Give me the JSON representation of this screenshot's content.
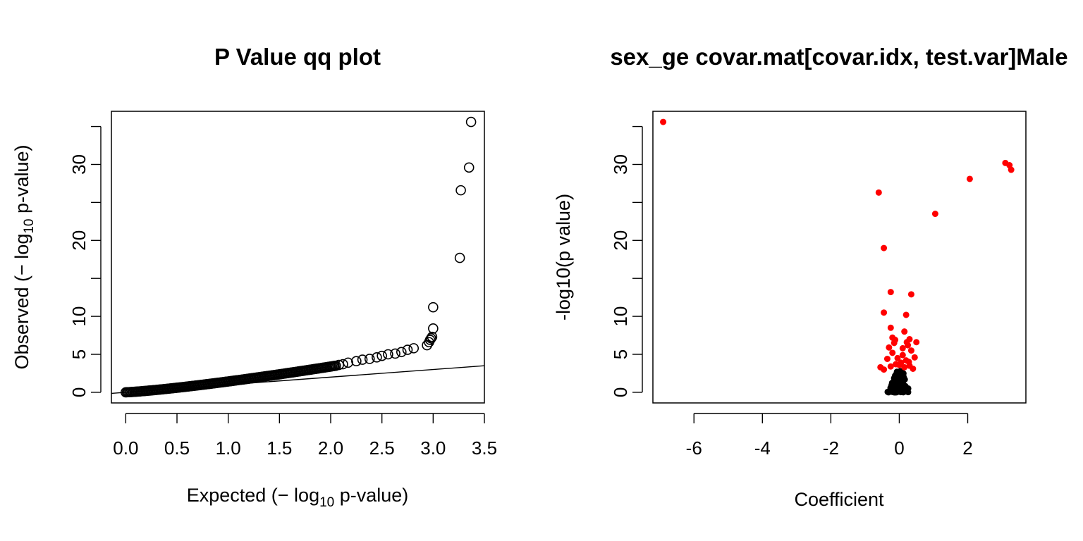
{
  "chart_data": [
    {
      "type": "scatter",
      "title": "P Value qq plot",
      "xlabel": {
        "pre": "Expected (− log",
        "sub": "10",
        "post": " p-value)"
      },
      "ylabel": {
        "pre": "Observed (− log",
        "sub": "10",
        "post": " p-value)"
      },
      "xlim": [
        -0.14,
        3.5
      ],
      "ylim": [
        -1.4,
        37
      ],
      "xticks": [
        0.0,
        0.5,
        1.0,
        1.5,
        2.0,
        2.5,
        3.0,
        3.5
      ],
      "xtick_labels": [
        "0.0",
        "0.5",
        "1.0",
        "1.5",
        "2.0",
        "2.5",
        "3.0",
        "3.5"
      ],
      "yticks": [
        0,
        5,
        10,
        15,
        20,
        25,
        30,
        35
      ],
      "ytick_labels": [
        "0",
        "5",
        "10",
        "",
        "20",
        "",
        "30",
        ""
      ],
      "reference_line": {
        "slope": 1.0,
        "intercept": 0.0
      },
      "marker": "open-circle",
      "bulk": {
        "x_start": 0.0,
        "x_end": 2.05,
        "y_start": 0.0,
        "y_end": 3.5
      },
      "points": [
        [
          2.08,
          3.6
        ],
        [
          2.12,
          3.7
        ],
        [
          2.17,
          3.9
        ],
        [
          2.25,
          4.1
        ],
        [
          2.31,
          4.3
        ],
        [
          2.38,
          4.4
        ],
        [
          2.45,
          4.6
        ],
        [
          2.5,
          4.8
        ],
        [
          2.56,
          5.0
        ],
        [
          2.63,
          5.1
        ],
        [
          2.69,
          5.3
        ],
        [
          2.75,
          5.6
        ],
        [
          2.81,
          5.8
        ],
        [
          2.94,
          6.2
        ],
        [
          2.96,
          6.6
        ],
        [
          2.97,
          6.9
        ],
        [
          2.98,
          7.1
        ],
        [
          2.99,
          7.3
        ],
        [
          3.0,
          8.4
        ],
        [
          3.0,
          11.2
        ],
        [
          3.26,
          17.7
        ],
        [
          3.27,
          26.6
        ],
        [
          3.35,
          29.6
        ],
        [
          3.37,
          35.6
        ]
      ]
    },
    {
      "type": "scatter",
      "title": "sex_ge covar.mat[covar.idx, test.var]Male",
      "xlabel": "Coefficient",
      "ylabel": "-log10(p value)",
      "xlim": [
        -7.2,
        3.7
      ],
      "ylim": [
        -1.4,
        37
      ],
      "xticks": [
        -6,
        -4,
        -2,
        0,
        2
      ],
      "xtick_labels": [
        "-6",
        "-4",
        "-2",
        "0",
        "2"
      ],
      "yticks": [
        0,
        5,
        10,
        15,
        20,
        25,
        30,
        35
      ],
      "ytick_labels": [
        "0",
        "5",
        "10",
        "",
        "20",
        "",
        "30",
        ""
      ],
      "colors": {
        "significant": "#ff0000",
        "nonsignificant": "#000000"
      },
      "significant_points": [
        [
          -6.9,
          35.6
        ],
        [
          3.1,
          30.2
        ],
        [
          3.22,
          29.9
        ],
        [
          3.27,
          29.3
        ],
        [
          2.06,
          28.1
        ],
        [
          -0.6,
          26.3
        ],
        [
          1.05,
          23.5
        ],
        [
          -0.45,
          19.0
        ],
        [
          -0.25,
          13.2
        ],
        [
          0.35,
          12.9
        ],
        [
          -0.45,
          10.5
        ],
        [
          0.2,
          10.2
        ],
        [
          -0.25,
          8.5
        ],
        [
          0.15,
          8.0
        ],
        [
          -0.2,
          7.2
        ],
        [
          0.3,
          7.0
        ],
        [
          0.5,
          6.6
        ],
        [
          -0.15,
          6.5
        ],
        [
          0.25,
          6.2
        ],
        [
          -0.3,
          5.9
        ],
        [
          0.35,
          5.5
        ],
        [
          -0.2,
          5.2
        ],
        [
          0.1,
          4.9
        ],
        [
          0.45,
          4.6
        ],
        [
          -0.35,
          4.4
        ],
        [
          0.2,
          4.2
        ],
        [
          0.05,
          3.9
        ],
        [
          -0.1,
          3.7
        ],
        [
          0.3,
          3.5
        ],
        [
          -0.55,
          3.3
        ],
        [
          -0.45,
          3.0
        ],
        [
          0.15,
          3.3
        ],
        [
          -0.25,
          3.4
        ],
        [
          0.4,
          3.1
        ],
        [
          0.0,
          3.6
        ],
        [
          -0.05,
          4.5
        ],
        [
          0.1,
          5.8
        ],
        [
          0.22,
          6.6
        ],
        [
          -0.12,
          6.9
        ],
        [
          0.28,
          4.0
        ]
      ],
      "cluster": {
        "x_center": 0.0,
        "x_spread": 0.4,
        "y_max": 2.8
      }
    }
  ]
}
